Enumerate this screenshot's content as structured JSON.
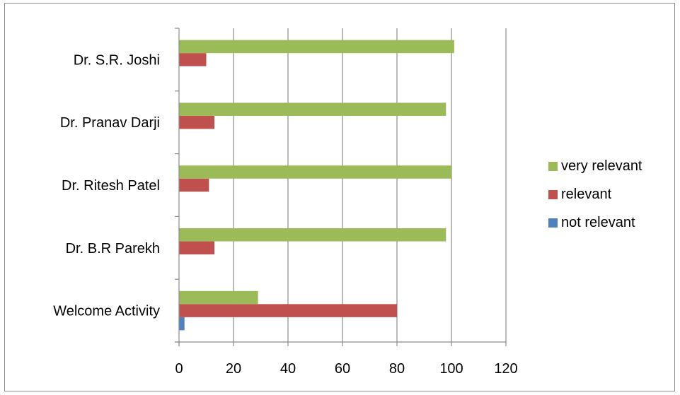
{
  "chart_data": {
    "type": "bar",
    "orientation": "horizontal",
    "categories": [
      "Welcome Activity",
      "Dr. B.R Parekh",
      "Dr. Ritesh Patel",
      "Dr. Pranav Darji",
      "Dr. S.R. Joshi"
    ],
    "series": [
      {
        "name": "not relevant",
        "values": [
          2,
          0,
          0,
          0,
          0
        ],
        "color": "#4f81bd"
      },
      {
        "name": "relevant",
        "values": [
          80,
          13,
          11,
          13,
          10
        ],
        "color": "#c0504d"
      },
      {
        "name": "very relevant",
        "values": [
          29,
          98,
          100,
          98,
          101
        ],
        "color": "#9bbb59"
      }
    ],
    "x_ticks": [
      "0",
      "20",
      "40",
      "60",
      "80",
      "100",
      "120"
    ],
    "xlim": [
      0,
      120
    ],
    "grid": "vertical",
    "legend_position": "right",
    "legend_order": [
      "very relevant",
      "relevant",
      "not relevant"
    ]
  }
}
